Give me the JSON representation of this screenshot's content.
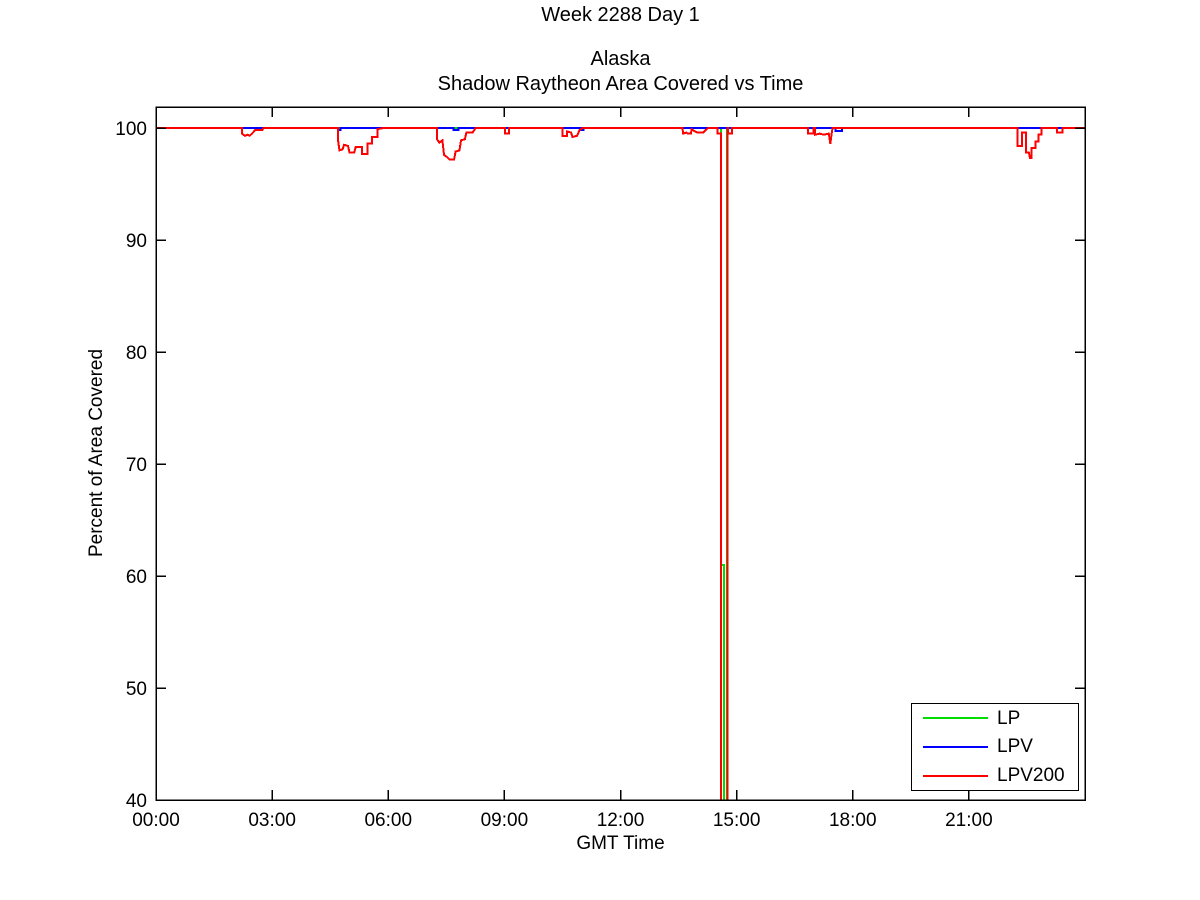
{
  "chart_data": {
    "type": "line",
    "suptitle": "Week 2288 Day 1",
    "title": [
      "Alaska",
      "Shadow Raytheon Area Covered vs Time"
    ],
    "xlabel": "GMT Time",
    "ylabel": "Percent of Area Covered",
    "xlim": [
      0,
      24
    ],
    "ylim": [
      40,
      100
    ],
    "grid": false,
    "x_unit": "hours (GMT, HH:MM)",
    "xticks": [
      {
        "h": 0,
        "label": "00:00"
      },
      {
        "h": 3,
        "label": "03:00"
      },
      {
        "h": 6,
        "label": "06:00"
      },
      {
        "h": 9,
        "label": "09:00"
      },
      {
        "h": 12,
        "label": "12:00"
      },
      {
        "h": 15,
        "label": "15:00"
      },
      {
        "h": 18,
        "label": "18:00"
      },
      {
        "h": 21,
        "label": "21:00"
      }
    ],
    "yticks": [
      {
        "v": 40,
        "label": "40"
      },
      {
        "v": 50,
        "label": "50"
      },
      {
        "v": 60,
        "label": "60"
      },
      {
        "v": 70,
        "label": "70"
      },
      {
        "v": 80,
        "label": "80"
      },
      {
        "v": 90,
        "label": "90"
      },
      {
        "v": 100,
        "label": "100"
      }
    ],
    "legend": {
      "position": "lower-right",
      "entries": [
        "LP",
        "LPV",
        "LPV200"
      ]
    },
    "series": [
      {
        "name": "LP",
        "color": "#00dd00",
        "points": [
          [
            0,
            100
          ],
          [
            14.6,
            100
          ],
          [
            14.6,
            61
          ],
          [
            14.68,
            61
          ],
          [
            14.68,
            38
          ],
          [
            14.75,
            38
          ],
          [
            14.75,
            100
          ],
          [
            24,
            100
          ]
        ]
      },
      {
        "name": "LPV",
        "color": "#0000ff",
        "points": [
          [
            0,
            100
          ],
          [
            4.7,
            100
          ],
          [
            4.7,
            99.8
          ],
          [
            4.76,
            99.8
          ],
          [
            4.76,
            100
          ],
          [
            7.68,
            100
          ],
          [
            7.68,
            99.82
          ],
          [
            7.82,
            99.82
          ],
          [
            7.82,
            100
          ],
          [
            10.98,
            100
          ],
          [
            10.98,
            99.8
          ],
          [
            11.04,
            99.8
          ],
          [
            11.04,
            100
          ],
          [
            17.55,
            100
          ],
          [
            17.55,
            99.75
          ],
          [
            17.72,
            99.75
          ],
          [
            17.72,
            100
          ],
          [
            24,
            100
          ]
        ]
      },
      {
        "name": "LPV200",
        "color": "#ff0000",
        "points": [
          [
            0,
            100
          ],
          [
            2.22,
            100
          ],
          [
            2.22,
            99.5
          ],
          [
            2.3,
            99.3
          ],
          [
            2.36,
            99.4
          ],
          [
            2.42,
            99.3
          ],
          [
            2.48,
            99.5
          ],
          [
            2.56,
            99.8
          ],
          [
            2.74,
            99.8
          ],
          [
            2.78,
            100
          ],
          [
            4.7,
            100
          ],
          [
            4.7,
            99.0
          ],
          [
            4.74,
            98.0
          ],
          [
            4.82,
            98.1
          ],
          [
            4.86,
            98.5
          ],
          [
            4.96,
            98.4
          ],
          [
            5.0,
            97.8
          ],
          [
            5.12,
            97.8
          ],
          [
            5.16,
            98.3
          ],
          [
            5.32,
            98.3
          ],
          [
            5.32,
            97.7
          ],
          [
            5.46,
            97.7
          ],
          [
            5.46,
            98.6
          ],
          [
            5.58,
            98.6
          ],
          [
            5.58,
            99.2
          ],
          [
            5.72,
            99.2
          ],
          [
            5.72,
            99.9
          ],
          [
            5.88,
            100
          ],
          [
            7.26,
            100
          ],
          [
            7.26,
            99.0
          ],
          [
            7.32,
            98.7
          ],
          [
            7.4,
            98.9
          ],
          [
            7.44,
            97.6
          ],
          [
            7.52,
            97.4
          ],
          [
            7.58,
            97.2
          ],
          [
            7.7,
            97.2
          ],
          [
            7.74,
            97.9
          ],
          [
            7.84,
            98.0
          ],
          [
            7.88,
            98.9
          ],
          [
            7.98,
            99.0
          ],
          [
            8.02,
            99.6
          ],
          [
            8.18,
            99.6
          ],
          [
            8.26,
            100
          ],
          [
            9.02,
            100
          ],
          [
            9.02,
            99.5
          ],
          [
            9.12,
            99.5
          ],
          [
            9.12,
            100
          ],
          [
            10.5,
            100
          ],
          [
            10.5,
            99.3
          ],
          [
            10.62,
            99.3
          ],
          [
            10.62,
            99.7
          ],
          [
            10.72,
            99.6
          ],
          [
            10.76,
            99.2
          ],
          [
            10.88,
            99.3
          ],
          [
            10.94,
            99.8
          ],
          [
            11.02,
            100
          ],
          [
            13.6,
            100
          ],
          [
            13.62,
            99.5
          ],
          [
            13.7,
            99.6
          ],
          [
            13.74,
            99.5
          ],
          [
            13.82,
            99.5
          ],
          [
            13.84,
            99.9
          ],
          [
            13.92,
            99.7
          ],
          [
            13.98,
            99.6
          ],
          [
            14.14,
            99.6
          ],
          [
            14.2,
            99.8
          ],
          [
            14.26,
            100
          ],
          [
            14.5,
            100
          ],
          [
            14.5,
            99.5
          ],
          [
            14.6,
            99.5
          ],
          [
            14.6,
            38
          ],
          [
            14.76,
            38
          ],
          [
            14.76,
            100
          ],
          [
            14.78,
            100
          ],
          [
            14.78,
            99.5
          ],
          [
            14.88,
            99.5
          ],
          [
            14.88,
            100
          ],
          [
            16.85,
            100
          ],
          [
            16.85,
            99.5
          ],
          [
            16.98,
            99.5
          ],
          [
            16.98,
            100
          ],
          [
            17.03,
            100
          ],
          [
            17.03,
            99.4
          ],
          [
            17.15,
            99.5
          ],
          [
            17.25,
            99.4
          ],
          [
            17.38,
            99.5
          ],
          [
            17.42,
            98.6
          ],
          [
            17.46,
            99.6
          ],
          [
            17.48,
            100
          ],
          [
            22.25,
            100
          ],
          [
            22.25,
            98.4
          ],
          [
            22.37,
            98.4
          ],
          [
            22.37,
            99.6
          ],
          [
            22.47,
            99.6
          ],
          [
            22.47,
            97.8
          ],
          [
            22.55,
            97.8
          ],
          [
            22.58,
            97.3
          ],
          [
            22.62,
            97.3
          ],
          [
            22.62,
            98.2
          ],
          [
            22.72,
            98.2
          ],
          [
            22.72,
            98.8
          ],
          [
            22.8,
            98.8
          ],
          [
            22.8,
            99.4
          ],
          [
            22.88,
            99.4
          ],
          [
            22.88,
            100
          ],
          [
            23.28,
            100
          ],
          [
            23.28,
            99.6
          ],
          [
            23.42,
            99.6
          ],
          [
            23.42,
            100
          ],
          [
            24,
            100
          ]
        ]
      }
    ]
  }
}
